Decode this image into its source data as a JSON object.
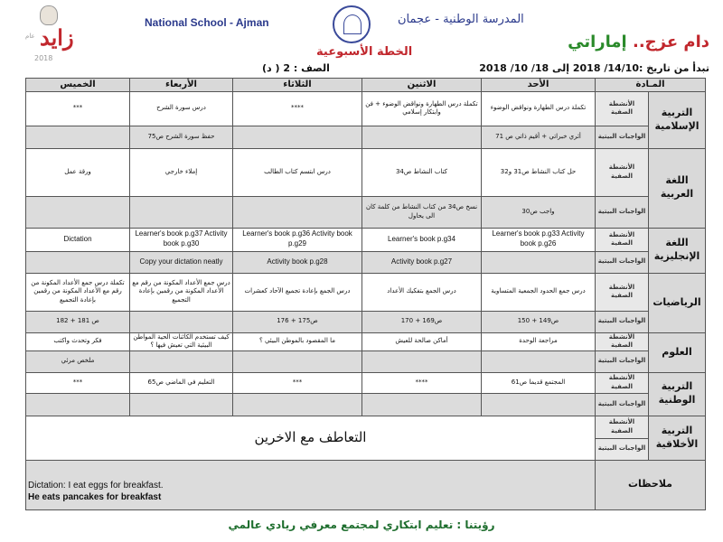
{
  "header": {
    "logo_zayed": {
      "text": "زايد",
      "year": "2018",
      "prefix": "عام"
    },
    "school_en": "National School - Ajman",
    "school_ar": "المدرسة الوطنية - عجمان",
    "slogan_red": "دام عزج..",
    "slogan_green": "إماراتي",
    "plan_title": "الخطة الأسبوعية",
    "date_range": "تبدأ من تاريخ :14/10/ 2018   إلى 18/ 10/ 2018",
    "class_label": "الصف : 2 ( د)"
  },
  "table": {
    "columns": [
      "المـادة",
      "",
      "الأحد",
      "الاثنين",
      "الثلاثاء",
      "الأربعاء",
      "الخميس"
    ],
    "type_class": "الأنشطة الصفية",
    "type_home": "الواجبات البيتية",
    "subjects": [
      {
        "name": "التربية الإسلامية",
        "class": [
          "تكملة درس الطهارة ونواقض الوضوء",
          "تكملة درس الطهارة ونواقض الوضوء + فن وابتكار إسلامي",
          "****",
          "درس سورة الشرح",
          "***"
        ],
        "home": [
          "أثري خبراتي + أقيم ذاتي ص 71",
          "",
          "",
          "حفظ سورة الشرح ص75",
          ""
        ]
      },
      {
        "name": "اللغة العربية",
        "class": [
          "حل كتاب النشاط ص31 و32",
          "كتاب النشاط ص34",
          "درس ابتسم كتاب الطالب",
          "إملاء خارجي",
          "ورقة عمل"
        ],
        "home": [
          "واجب ص30",
          "نسخ ص34 من كتاب النشاط من كلمة كان الى يحاول",
          "",
          "",
          ""
        ]
      },
      {
        "name": "اللغة الإنجليزية",
        "en": true,
        "class": [
          "Learner's book p.g33 Activity book p.g26",
          "Learner's book p.g34",
          "Learner's book p.g36 Activity book p.g29",
          "Learner's book p.g37 Activity book p.g30",
          "Dictation"
        ],
        "home": [
          "",
          "Activity book p.g27",
          "Activity book p.g28",
          "Copy your dictation neatly",
          ""
        ]
      },
      {
        "name": "الرياضيات",
        "class": [
          "درس جمع الحدود الجمعية المتساوية",
          "درس الجمع بتفكيك الأعداد",
          "درس الجمع بإعادة تجميع الآحاد كعشرات",
          "درس جمع الأعداد المكونة من رقم مع الأعداد المكونة من رقمين بإعادة التجميع",
          "تكملة درس جمع الأعداد المكونة من رقم مع الأعداد المكونة من رقمين بإعادة التجميع"
        ],
        "home": [
          "ص149 + 150",
          "ص169 + 170",
          "ص175 + 176",
          "",
          "ص 181 + 182"
        ]
      },
      {
        "name": "العلوم",
        "class": [
          "مراجعة الوحدة",
          "أماكن صالحة للعيش",
          "ما المقصود بالموطن البيئي ؟",
          "كيف تستخدم الكائنات الحية المواطن البيئية التي تعيش فيها ؟",
          "فكر وتحدث واكتب"
        ],
        "home": [
          "",
          "",
          "",
          "",
          "ملخص مرئي"
        ]
      },
      {
        "name": "التربية الوطنية",
        "class": [
          "المجتمع قديما ص61",
          "****",
          "***",
          "التعليم في الماضي ص65",
          "***"
        ],
        "home": [
          "",
          "",
          "",
          "",
          ""
        ]
      }
    ],
    "moral": {
      "name": "التربية الأخلاقية",
      "content": "التعاطف مع الاخرين"
    },
    "notes": {
      "label": "ملاحظات",
      "lines": [
        "Dictation: I eat eggs for breakfast.",
        "He eats pancakes for breakfast"
      ]
    }
  },
  "footer": "رؤيتنا : تعليم ابتكاري لمجتمع معرفي ريادي عالمي",
  "colors": {
    "red": "#c1272d",
    "green": "#2a8a2a",
    "blue": "#2b3a8c",
    "footer_green": "#1e6e2e",
    "gray": "#d9d9d9"
  }
}
